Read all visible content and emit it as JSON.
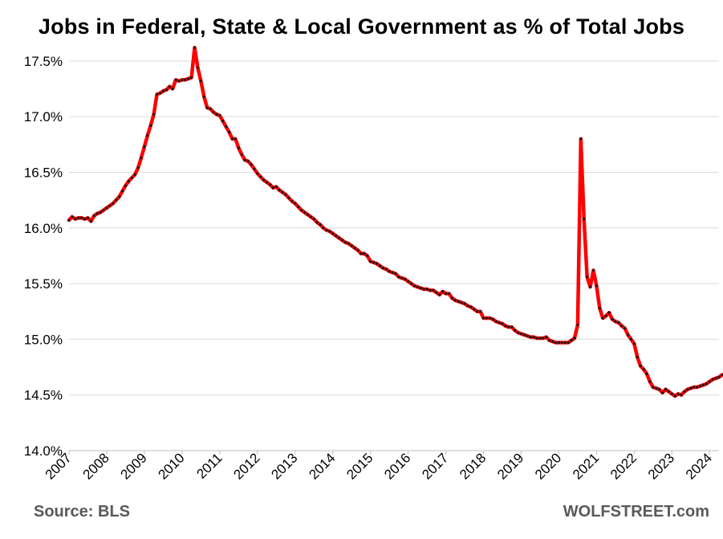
{
  "title": "Jobs in Federal, State & Local Government as % of Total Jobs",
  "source": "Source: BLS",
  "brand": "WOLFSTREET.com",
  "colors": {
    "line": "#ff0000",
    "marker": "#1a1a1a",
    "grid": "#d9d9d9",
    "axis": "#bfbfbf"
  },
  "chart_data": {
    "type": "line",
    "title": "Jobs in Federal, State & Local Government as % of Total Jobs",
    "xlabel": "",
    "ylabel": "",
    "ylim": [
      14.0,
      17.6
    ],
    "y_ticks": [
      14.0,
      14.5,
      15.0,
      15.5,
      16.0,
      16.5,
      17.0,
      17.5
    ],
    "y_tick_labels": [
      "14.0%",
      "14.5%",
      "15.0%",
      "15.5%",
      "16.0%",
      "16.5%",
      "17.0%",
      "17.5%"
    ],
    "x_tick_labels": [
      "2007",
      "2008",
      "2009",
      "2010",
      "2011",
      "2012",
      "2013",
      "2014",
      "2015",
      "2016",
      "2017",
      "2018",
      "2019",
      "2020",
      "2021",
      "2022",
      "2023",
      "2024"
    ],
    "grid": "horizontal",
    "legend": "none",
    "x_range": [
      "2007-01",
      "2024-04"
    ],
    "series": [
      {
        "points": [
          [
            "2007-01",
            16.07
          ],
          [
            "2007-02",
            16.1
          ],
          [
            "2007-03",
            16.08
          ],
          [
            "2007-04",
            16.09
          ],
          [
            "2007-05",
            16.09
          ],
          [
            "2007-06",
            16.08
          ],
          [
            "2007-07",
            16.09
          ],
          [
            "2007-08",
            16.06
          ],
          [
            "2007-09",
            16.11
          ],
          [
            "2007-10",
            16.13
          ],
          [
            "2007-11",
            16.14
          ],
          [
            "2007-12",
            16.16
          ],
          [
            "2008-01",
            16.18
          ],
          [
            "2008-02",
            16.2
          ],
          [
            "2008-03",
            16.22
          ],
          [
            "2008-04",
            16.25
          ],
          [
            "2008-05",
            16.28
          ],
          [
            "2008-06",
            16.33
          ],
          [
            "2008-07",
            16.38
          ],
          [
            "2008-08",
            16.42
          ],
          [
            "2008-09",
            16.45
          ],
          [
            "2008-10",
            16.48
          ],
          [
            "2008-11",
            16.54
          ],
          [
            "2008-12",
            16.63
          ],
          [
            "2009-01",
            16.73
          ],
          [
            "2009-02",
            16.83
          ],
          [
            "2009-03",
            16.92
          ],
          [
            "2009-04",
            17.02
          ],
          [
            "2009-05",
            17.2
          ],
          [
            "2009-06",
            17.21
          ],
          [
            "2009-07",
            17.23
          ],
          [
            "2009-08",
            17.24
          ],
          [
            "2009-09",
            17.27
          ],
          [
            "2009-10",
            17.25
          ],
          [
            "2009-11",
            17.33
          ],
          [
            "2009-12",
            17.32
          ],
          [
            "2010-01",
            17.33
          ],
          [
            "2010-02",
            17.33
          ],
          [
            "2010-03",
            17.34
          ],
          [
            "2010-04",
            17.35
          ],
          [
            "2010-05",
            17.62
          ],
          [
            "2010-06",
            17.44
          ],
          [
            "2010-07",
            17.32
          ],
          [
            "2010-08",
            17.18
          ],
          [
            "2010-09",
            17.08
          ],
          [
            "2010-10",
            17.07
          ],
          [
            "2010-11",
            17.04
          ],
          [
            "2010-12",
            17.02
          ],
          [
            "2011-01",
            17.01
          ],
          [
            "2011-02",
            16.96
          ],
          [
            "2011-03",
            16.91
          ],
          [
            "2011-04",
            16.86
          ],
          [
            "2011-05",
            16.8
          ],
          [
            "2011-06",
            16.8
          ],
          [
            "2011-07",
            16.72
          ],
          [
            "2011-08",
            16.66
          ],
          [
            "2011-09",
            16.61
          ],
          [
            "2011-10",
            16.6
          ],
          [
            "2011-11",
            16.57
          ],
          [
            "2011-12",
            16.53
          ],
          [
            "2012-01",
            16.49
          ],
          [
            "2012-02",
            16.46
          ],
          [
            "2012-03",
            16.43
          ],
          [
            "2012-04",
            16.41
          ],
          [
            "2012-05",
            16.39
          ],
          [
            "2012-06",
            16.36
          ],
          [
            "2012-07",
            16.37
          ],
          [
            "2012-08",
            16.34
          ],
          [
            "2012-09",
            16.32
          ],
          [
            "2012-10",
            16.3
          ],
          [
            "2012-11",
            16.27
          ],
          [
            "2012-12",
            16.24
          ],
          [
            "2013-01",
            16.22
          ],
          [
            "2013-02",
            16.19
          ],
          [
            "2013-03",
            16.16
          ],
          [
            "2013-04",
            16.14
          ],
          [
            "2013-05",
            16.12
          ],
          [
            "2013-06",
            16.1
          ],
          [
            "2013-07",
            16.08
          ],
          [
            "2013-08",
            16.05
          ],
          [
            "2013-09",
            16.03
          ],
          [
            "2013-10",
            16.0
          ],
          [
            "2013-11",
            15.98
          ],
          [
            "2013-12",
            15.97
          ],
          [
            "2014-01",
            15.95
          ],
          [
            "2014-02",
            15.93
          ],
          [
            "2014-03",
            15.91
          ],
          [
            "2014-04",
            15.89
          ],
          [
            "2014-05",
            15.87
          ],
          [
            "2014-06",
            15.86
          ],
          [
            "2014-07",
            15.84
          ],
          [
            "2014-08",
            15.82
          ],
          [
            "2014-09",
            15.8
          ],
          [
            "2014-10",
            15.77
          ],
          [
            "2014-11",
            15.77
          ],
          [
            "2014-12",
            15.75
          ],
          [
            "2015-01",
            15.7
          ],
          [
            "2015-02",
            15.69
          ],
          [
            "2015-03",
            15.68
          ],
          [
            "2015-04",
            15.66
          ],
          [
            "2015-05",
            15.64
          ],
          [
            "2015-06",
            15.63
          ],
          [
            "2015-07",
            15.61
          ],
          [
            "2015-08",
            15.6
          ],
          [
            "2015-09",
            15.59
          ],
          [
            "2015-10",
            15.56
          ],
          [
            "2015-11",
            15.55
          ],
          [
            "2015-12",
            15.54
          ],
          [
            "2016-01",
            15.52
          ],
          [
            "2016-02",
            15.5
          ],
          [
            "2016-03",
            15.48
          ],
          [
            "2016-04",
            15.47
          ],
          [
            "2016-05",
            15.46
          ],
          [
            "2016-06",
            15.45
          ],
          [
            "2016-07",
            15.45
          ],
          [
            "2016-08",
            15.44
          ],
          [
            "2016-09",
            15.44
          ],
          [
            "2016-10",
            15.42
          ],
          [
            "2016-11",
            15.4
          ],
          [
            "2016-12",
            15.43
          ],
          [
            "2017-01",
            15.41
          ],
          [
            "2017-02",
            15.41
          ],
          [
            "2017-03",
            15.37
          ],
          [
            "2017-04",
            15.35
          ],
          [
            "2017-05",
            15.34
          ],
          [
            "2017-06",
            15.33
          ],
          [
            "2017-07",
            15.32
          ],
          [
            "2017-08",
            15.3
          ],
          [
            "2017-09",
            15.29
          ],
          [
            "2017-10",
            15.27
          ],
          [
            "2017-11",
            15.25
          ],
          [
            "2017-12",
            15.25
          ],
          [
            "2018-01",
            15.19
          ],
          [
            "2018-02",
            15.19
          ],
          [
            "2018-03",
            15.19
          ],
          [
            "2018-04",
            15.18
          ],
          [
            "2018-05",
            15.16
          ],
          [
            "2018-06",
            15.15
          ],
          [
            "2018-07",
            15.14
          ],
          [
            "2018-08",
            15.12
          ],
          [
            "2018-09",
            15.11
          ],
          [
            "2018-10",
            15.11
          ],
          [
            "2018-11",
            15.08
          ],
          [
            "2018-12",
            15.06
          ],
          [
            "2019-01",
            15.05
          ],
          [
            "2019-02",
            15.04
          ],
          [
            "2019-03",
            15.03
          ],
          [
            "2019-04",
            15.02
          ],
          [
            "2019-05",
            15.02
          ],
          [
            "2019-06",
            15.01
          ],
          [
            "2019-07",
            15.01
          ],
          [
            "2019-08",
            15.01
          ],
          [
            "2019-09",
            15.02
          ],
          [
            "2019-10",
            14.99
          ],
          [
            "2019-11",
            14.98
          ],
          [
            "2019-12",
            14.97
          ],
          [
            "2020-01",
            14.97
          ],
          [
            "2020-02",
            14.97
          ],
          [
            "2020-03",
            14.97
          ],
          [
            "2020-04",
            14.97
          ],
          [
            "2020-05",
            14.99
          ],
          [
            "2020-06",
            15.01
          ],
          [
            "2020-07",
            15.13
          ],
          [
            "2020-08",
            16.8
          ],
          [
            "2020-09",
            16.08
          ],
          [
            "2020-10",
            15.56
          ],
          [
            "2020-11",
            15.47
          ],
          [
            "2020-12",
            15.62
          ],
          [
            "2021-01",
            15.48
          ],
          [
            "2021-02",
            15.28
          ],
          [
            "2021-03",
            15.19
          ],
          [
            "2021-04",
            15.21
          ],
          [
            "2021-05",
            15.24
          ],
          [
            "2021-06",
            15.18
          ],
          [
            "2021-07",
            15.16
          ],
          [
            "2021-08",
            15.15
          ],
          [
            "2021-09",
            15.12
          ],
          [
            "2021-10",
            15.1
          ],
          [
            "2021-11",
            15.04
          ],
          [
            "2021-12",
            15.0
          ],
          [
            "2022-01",
            14.96
          ],
          [
            "2022-02",
            14.84
          ],
          [
            "2022-03",
            14.76
          ],
          [
            "2022-04",
            14.73
          ],
          [
            "2022-05",
            14.69
          ],
          [
            "2022-06",
            14.62
          ],
          [
            "2022-07",
            14.57
          ],
          [
            "2022-08",
            14.56
          ],
          [
            "2022-09",
            14.55
          ],
          [
            "2022-10",
            14.52
          ],
          [
            "2022-11",
            14.55
          ],
          [
            "2022-12",
            14.53
          ],
          [
            "2023-01",
            14.51
          ],
          [
            "2023-02",
            14.49
          ],
          [
            "2023-03",
            14.51
          ],
          [
            "2023-04",
            14.5
          ],
          [
            "2023-05",
            14.53
          ],
          [
            "2023-06",
            14.55
          ],
          [
            "2023-07",
            14.56
          ],
          [
            "2023-08",
            14.57
          ],
          [
            "2023-09",
            14.57
          ],
          [
            "2023-10",
            14.58
          ],
          [
            "2023-11",
            14.59
          ],
          [
            "2023-12",
            14.6
          ],
          [
            "2024-01",
            14.62
          ],
          [
            "2024-02",
            14.64
          ],
          [
            "2024-03",
            14.65
          ],
          [
            "2024-04",
            14.66
          ],
          [
            "2024-05",
            14.68
          ],
          [
            "2024-06",
            14.69
          ],
          [
            "2024-07",
            14.7
          ],
          [
            "2024-08",
            14.71
          ]
        ]
      }
    ]
  }
}
